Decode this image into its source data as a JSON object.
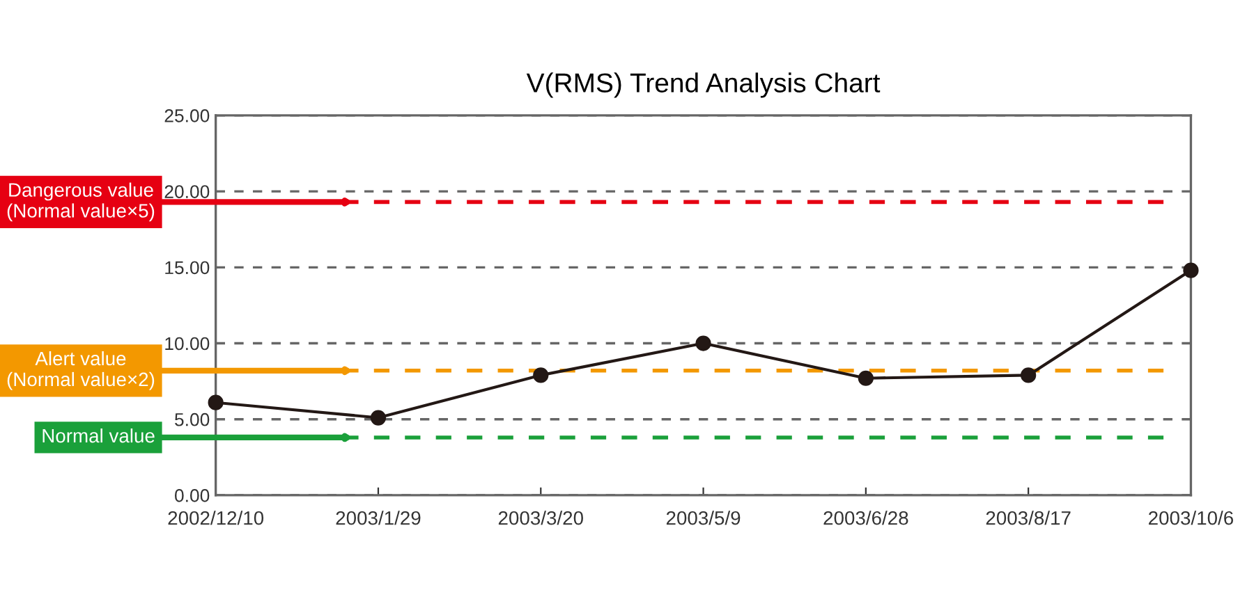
{
  "chart_data": {
    "type": "line",
    "title": "V(RMS) Trend Analysis Chart",
    "categories": [
      "2002/12/10",
      "2003/1/29",
      "2003/3/20",
      "2003/5/9",
      "2003/6/28",
      "2003/8/17",
      "2003/10/6"
    ],
    "series": [
      {
        "color": "#231815",
        "values": [
          6.1,
          5.1,
          7.9,
          10.0,
          7.7,
          7.9,
          14.8
        ]
      }
    ],
    "marker": "circle",
    "line_style": "solid",
    "ylim": [
      0,
      25
    ],
    "yticks": [
      {
        "value": 0,
        "label": "0.00"
      },
      {
        "value": 5,
        "label": "5.00"
      },
      {
        "value": 10,
        "label": "10.00"
      },
      {
        "value": 15,
        "label": "15.00"
      },
      {
        "value": 20,
        "label": "20.00"
      },
      {
        "value": 25,
        "label": "25.00"
      }
    ],
    "grid": "y",
    "ref_lines": [
      {
        "axis": "y",
        "value": 19.3,
        "label": "Dangerous value\n(Normal value×5)",
        "color": "#e60012",
        "line_style": "dashed"
      },
      {
        "axis": "y",
        "value": 8.2,
        "label": "Alert value\n(Normal value×2)",
        "color": "#f39800",
        "line_style": "dashed"
      },
      {
        "axis": "y",
        "value": 3.8,
        "label": "Normal value",
        "color": "#1aa03a",
        "line_style": "dashed"
      }
    ]
  }
}
